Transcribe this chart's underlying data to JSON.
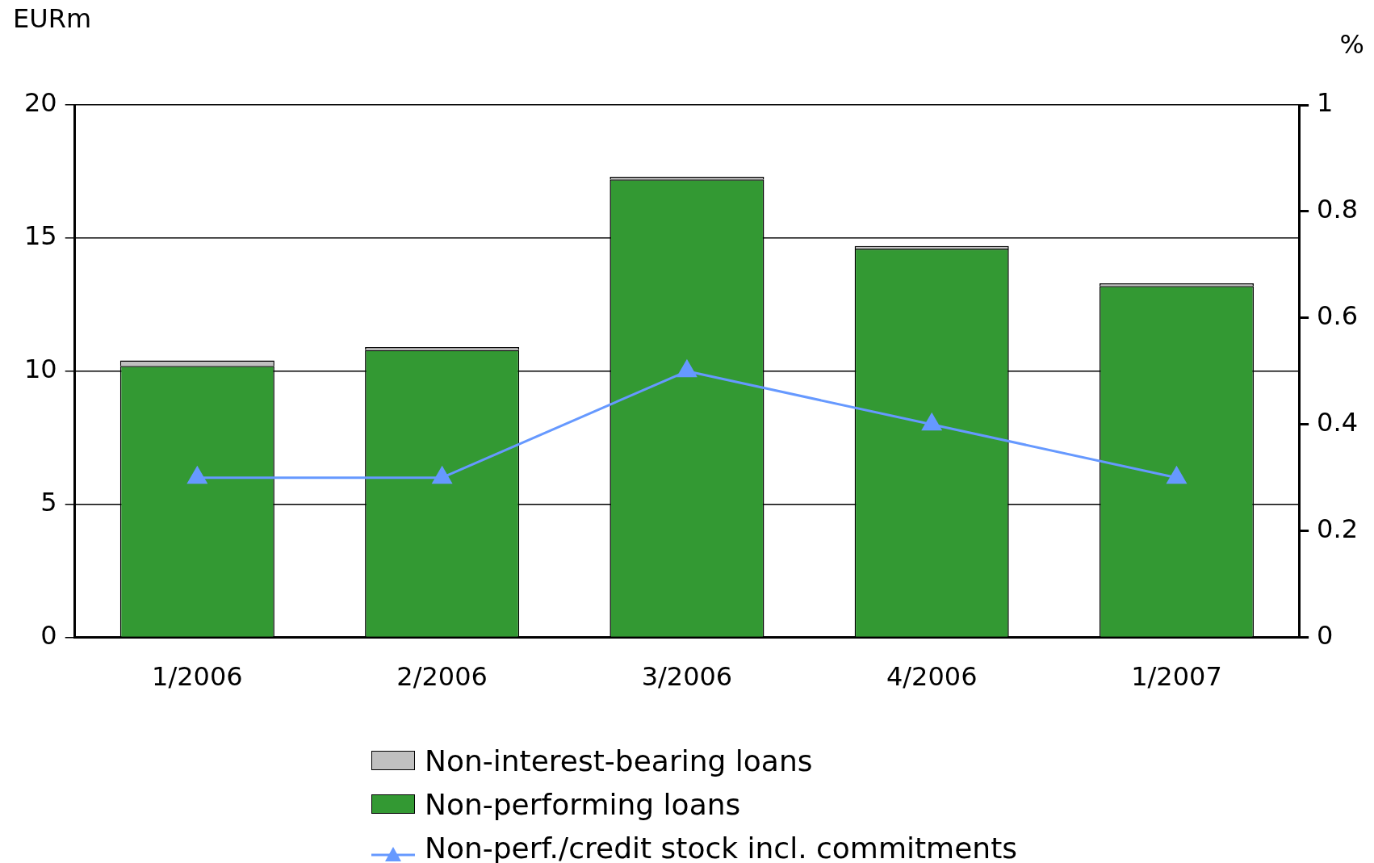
{
  "chart_data": {
    "type": "bar",
    "stacked": true,
    "ylabel": "EURm",
    "y2label": "%",
    "categories": [
      "1/2006",
      "2/2006",
      "3/2006",
      "4/2006",
      "1/2007"
    ],
    "series": [
      {
        "name": "Non-performing loans",
        "color": "#339933",
        "values": [
          10.2,
          10.8,
          17.2,
          14.6,
          13.2
        ]
      },
      {
        "name": "Non-interest-bearing loans",
        "color": "#c0c0c0",
        "values": [
          0.2,
          0.1,
          0.1,
          0.1,
          0.1
        ]
      },
      {
        "name": "Non-perf./credit stock incl. commitments",
        "type": "line",
        "axis": "y2",
        "color": "#6699ff",
        "marker": "triangle",
        "values": [
          0.3,
          0.3,
          0.5,
          0.4,
          0.3
        ]
      }
    ],
    "ylim": [
      0,
      20
    ],
    "yticks": [
      0,
      5,
      10,
      15,
      20
    ],
    "y2lim": [
      0,
      1
    ],
    "y2ticks": [
      0,
      0.2,
      0.4,
      0.6,
      0.8,
      1
    ],
    "grid": "y",
    "legend": "bottom"
  }
}
